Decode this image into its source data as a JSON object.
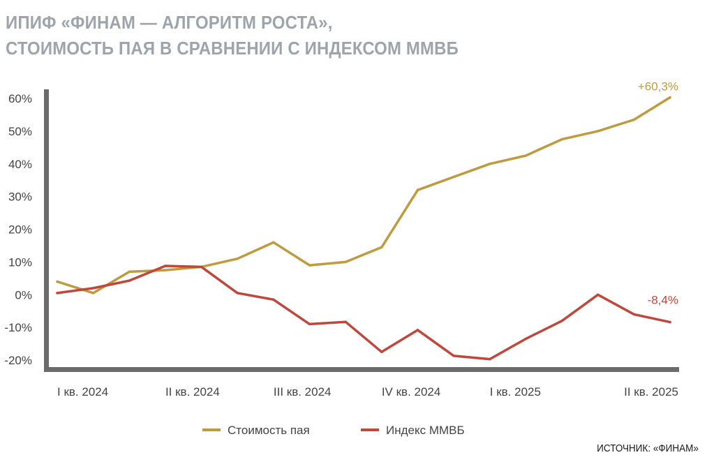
{
  "title": {
    "line1": "ИПИФ «ФИНАМ — АЛГОРИТМ РОСТА»,",
    "line2": "СТОИМОСТЬ ПАЯ В СРАВНЕНИИ С ИНДЕКСОМ ММВБ"
  },
  "source": "ИСТОЧНИК: «ФИНАМ»",
  "colors": {
    "series_fund": "#c09a3e",
    "series_index": "#c0473c",
    "axis": "#6b6b6b",
    "text": "#444444"
  },
  "chart_data": {
    "type": "line",
    "title": "ИПИФ «ФИНАМ — АЛГОРИТМ РОСТА», СТОИМОСТЬ ПАЯ В СРАВНЕНИИ С ИНДЕКСОМ ММВБ",
    "xlabel": "",
    "ylabel": "",
    "ylim": [
      -20,
      60
    ],
    "yticks": [
      60,
      50,
      40,
      30,
      20,
      10,
      0,
      -10,
      -20
    ],
    "ytick_labels": [
      "60%",
      "50%",
      "40%",
      "30%",
      "20%",
      "10%",
      "0%",
      "-10%",
      "-20%"
    ],
    "x_tick_labels": [
      "I кв. 2024",
      "II кв. 2024",
      "III кв. 2024",
      "IV кв. 2024",
      "I кв. 2025",
      "II кв. 2025"
    ],
    "x_tick_positions": [
      0,
      3,
      6,
      9,
      12,
      15
    ],
    "x": [
      0,
      1,
      2,
      3,
      4,
      5,
      6,
      7,
      8,
      9,
      10,
      11,
      12,
      13,
      14,
      15,
      16,
      17
    ],
    "grid": false,
    "legend_position": "bottom-center",
    "series": [
      {
        "name": "Стоимость пая",
        "values": [
          4,
          0.5,
          7,
          7.5,
          8.5,
          11,
          16,
          9,
          10,
          14.5,
          32,
          36,
          40,
          42.5,
          47.5,
          50,
          53.5,
          60.3
        ],
        "end_label": "+60,3%"
      },
      {
        "name": "Индекс ММВБ",
        "values": [
          0.5,
          2,
          4.3,
          8.8,
          8.5,
          0.5,
          -1.5,
          -9,
          -8.3,
          -17.5,
          -10.8,
          -18.7,
          -19.7,
          -13.5,
          -8,
          0,
          -6,
          -8.4
        ],
        "end_label": "-8,4%"
      }
    ]
  }
}
